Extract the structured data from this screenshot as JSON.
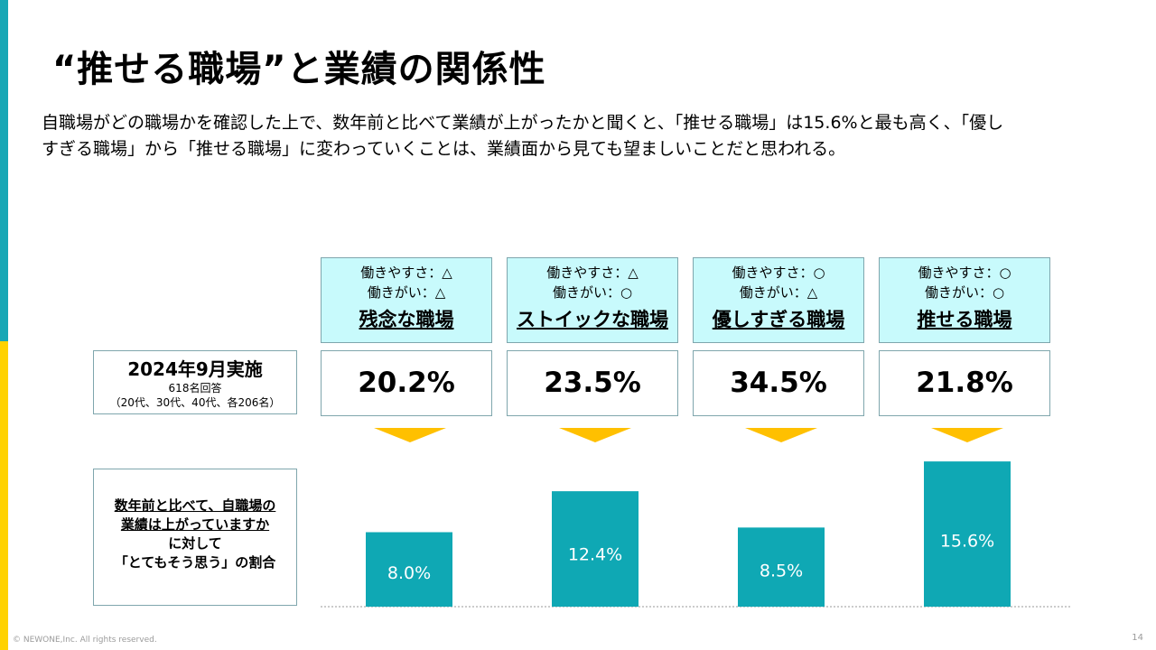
{
  "title": "“推せる職場”と業績の関係性",
  "description": [
    "自職場がどの職場かを確認した上で、数年前と比べて業績が上がったかと聞くと、「推せる職場」は15.6%と最も高く、「優し",
    "すぎる職場」から「推せる職場」に変わっていくことは、業績面から見ても望ましいことだと思われる。"
  ],
  "survey": {
    "title": "2024年9月実施",
    "respondents": "618名回答",
    "breakdown": "（20代、30代、40代、各206名）"
  },
  "question": {
    "line1": "数年前と比べて、自職場の",
    "line2": "業績は上がっていますか",
    "line3": "に対して",
    "line4": "「とてもそう思う」の割合"
  },
  "types": [
    {
      "ease": "働きやすさ：△",
      "worth": "働きがい：△",
      "name": "残念な職場",
      "share": "20.2%"
    },
    {
      "ease": "働きやすさ：△",
      "worth": "働きがい：○",
      "name": "ストイックな職場",
      "share": "23.5%"
    },
    {
      "ease": "働きやすさ：○",
      "worth": "働きがい：△",
      "name": "優しすぎる職場",
      "share": "34.5%"
    },
    {
      "ease": "働きやすさ：○",
      "worth": "働きがい：○",
      "name": "推せる職場",
      "share": "21.8%"
    }
  ],
  "chart_data": {
    "type": "bar",
    "categories": [
      "残念な職場",
      "ストイックな職場",
      "優しすぎる職場",
      "推せる職場"
    ],
    "values": [
      8.0,
      12.4,
      8.5,
      15.6
    ],
    "labels": [
      "8.0%",
      "12.4%",
      "8.5%",
      "15.6%"
    ],
    "ylim": [
      0,
      16
    ],
    "bar_color": "#0fa8b4"
  },
  "footer": "© NEWONE,Inc.  All rights reserved.",
  "page_number": "14",
  "colors": {
    "teal": "#17a7b5",
    "yellow": "#ffd200",
    "box_fill": "#c8fafc",
    "arrow": "#ffc000"
  }
}
